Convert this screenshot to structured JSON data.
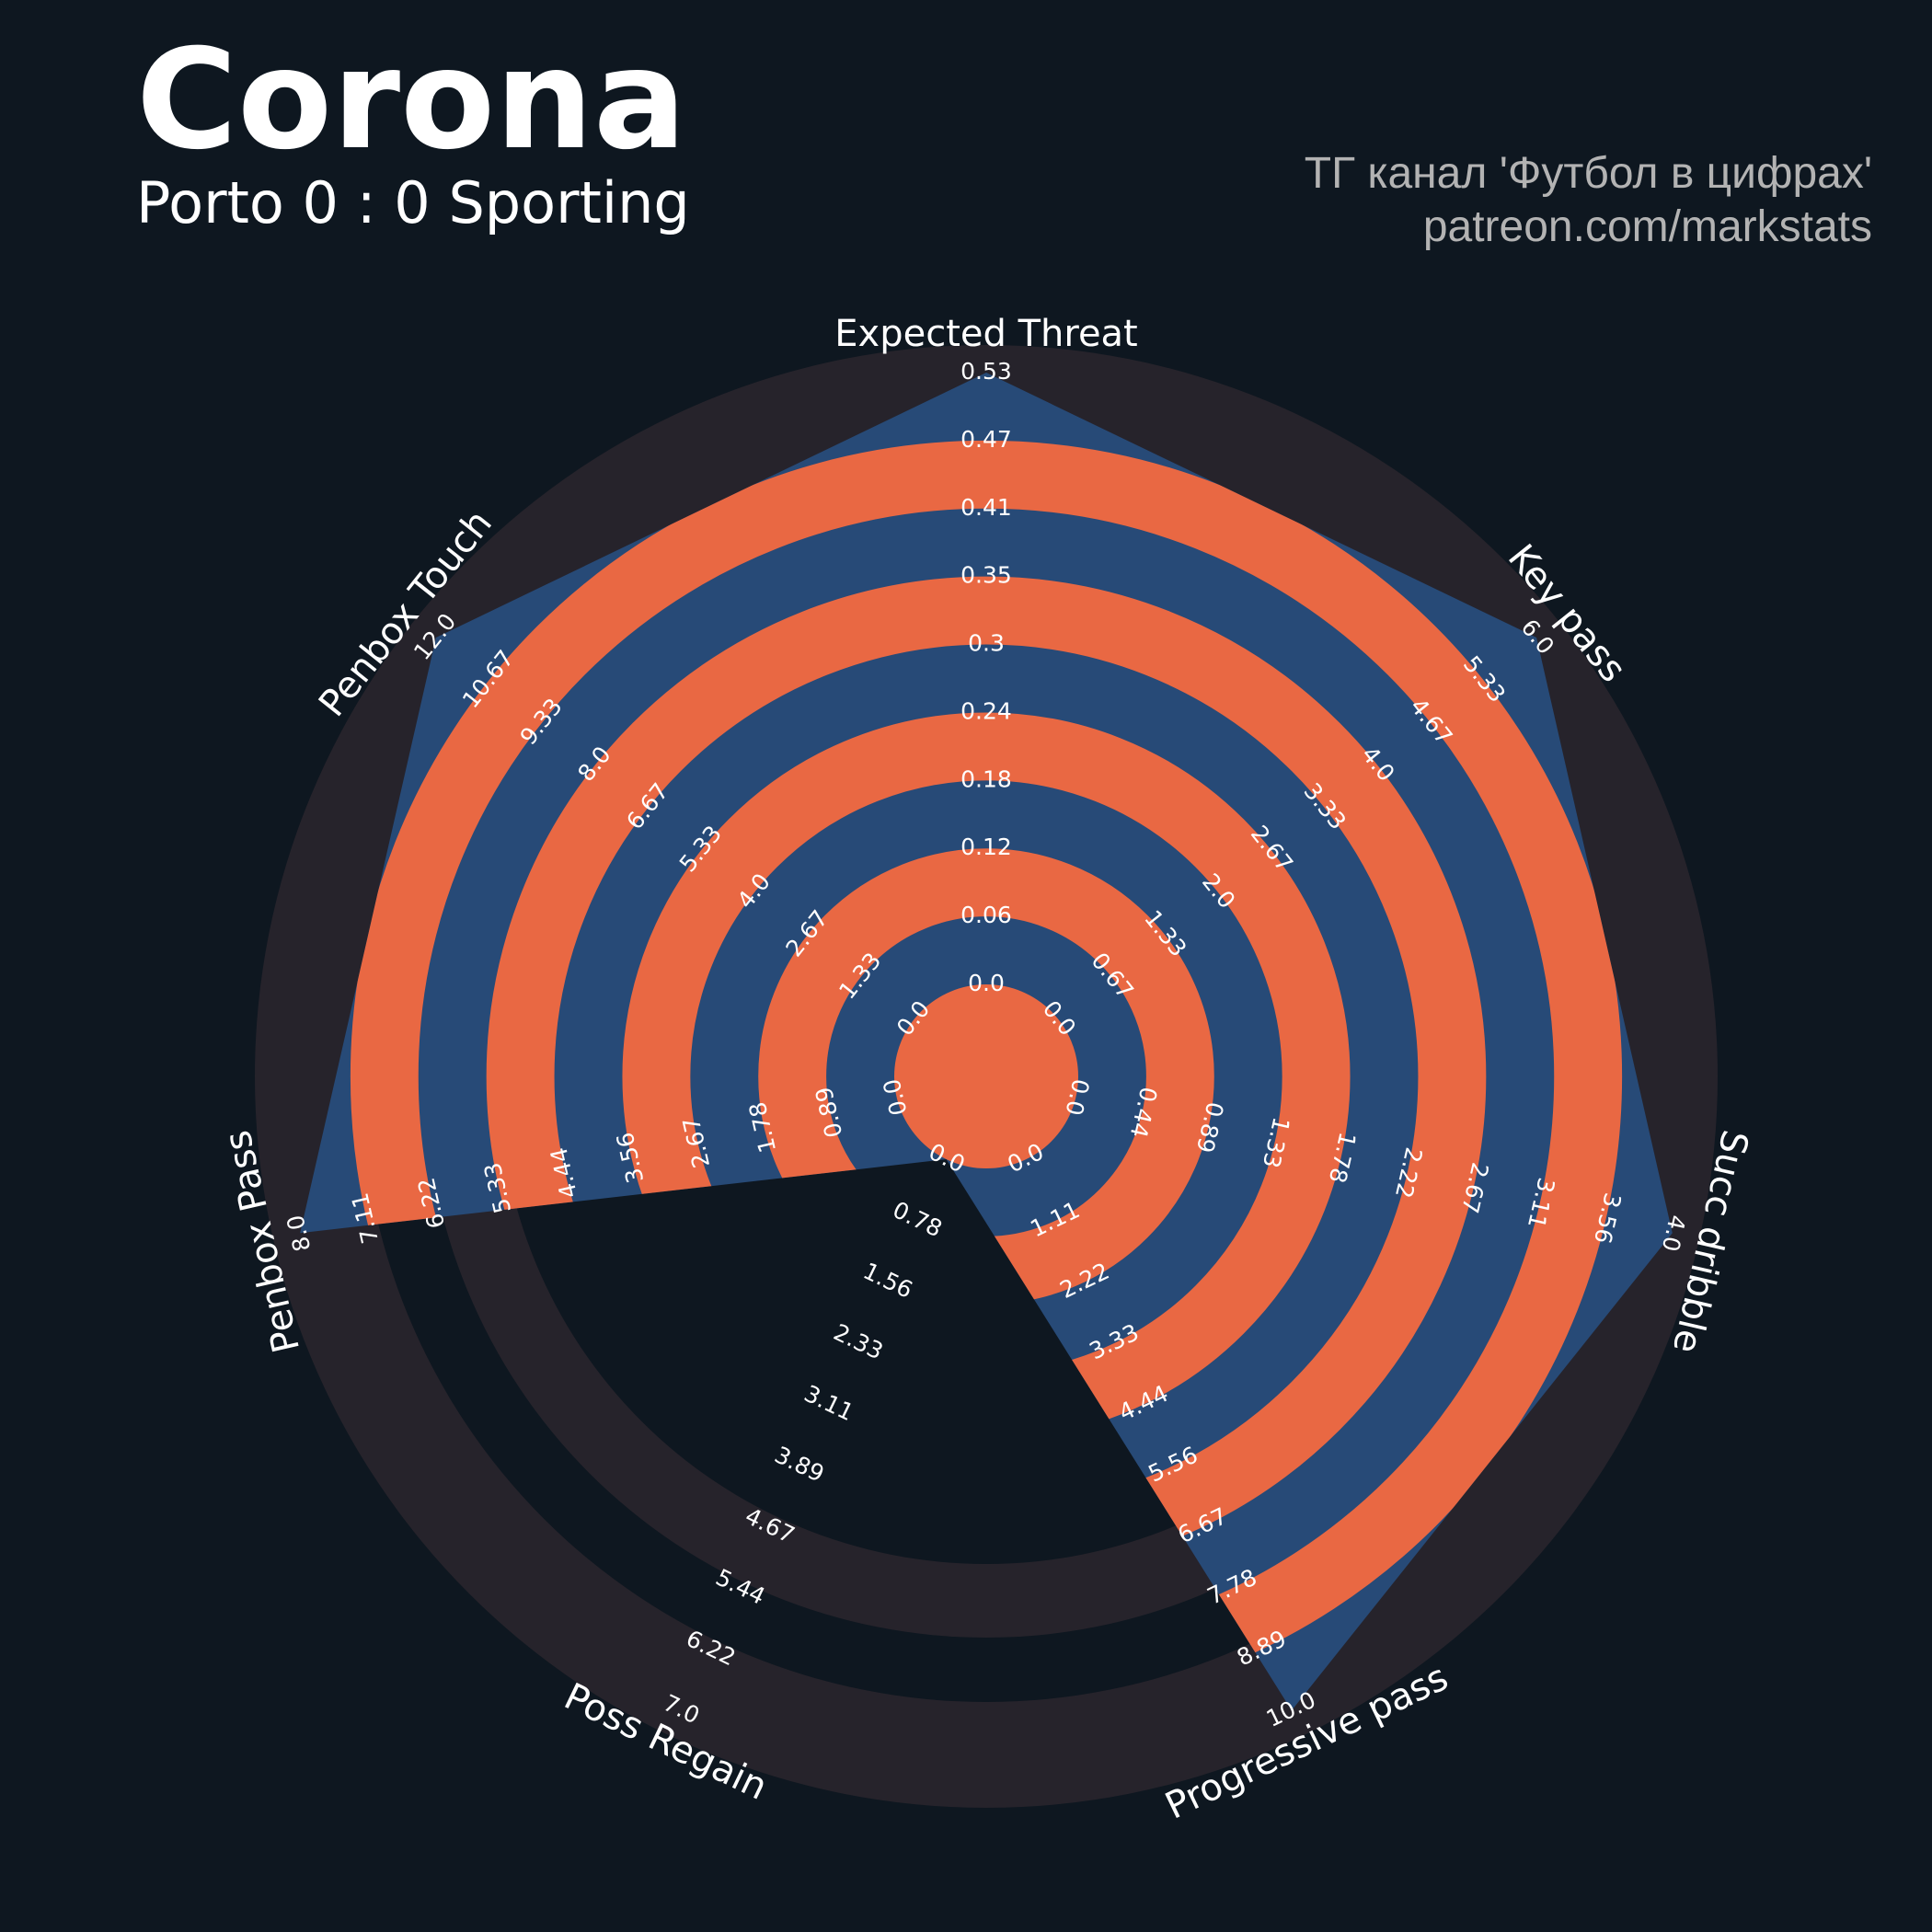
{
  "header": {
    "title": "Corona",
    "subtitle": "Porto 0 : 0 Sporting",
    "credit_line1": "ТГ канал 'Футбол в цифрах'",
    "credit_line2": "patreon.com/markstats"
  },
  "colors": {
    "background": "#0e1720",
    "outer_band": "#26232b",
    "polygon": "#274a77",
    "rings": "#e96843",
    "text": "#ffffff",
    "credit": "#b3b3b3"
  },
  "chart_data": {
    "type": "radar",
    "axes": [
      {
        "name": "Expected Threat",
        "ticks": [
          "0.0",
          "0.06",
          "0.12",
          "0.18",
          "0.24",
          "0.3",
          "0.35",
          "0.41",
          "0.47",
          "0.53"
        ],
        "value": 0.53
      },
      {
        "name": "Key pass",
        "ticks": [
          "0.0",
          "0.67",
          "1.33",
          "2.0",
          "2.67",
          "3.33",
          "4.0",
          "4.67",
          "5.33",
          "6.0"
        ],
        "value": 6.0
      },
      {
        "name": "Succ dribble",
        "ticks": [
          "0.0",
          "0.44",
          "0.89",
          "1.33",
          "1.78",
          "2.22",
          "2.67",
          "3.11",
          "3.56",
          "4.0"
        ],
        "value": 4.0
      },
      {
        "name": "Progressive pass",
        "ticks": [
          "0.0",
          "1.11",
          "2.22",
          "3.33",
          "4.44",
          "5.56",
          "6.67",
          "7.78",
          "8.89",
          "10.0"
        ],
        "value": 10.0
      },
      {
        "name": "Poss Regain",
        "ticks": [
          "0.0",
          "0.78",
          "1.56",
          "2.33",
          "3.11",
          "3.89",
          "4.67",
          "5.44",
          "6.22",
          "7.0"
        ],
        "value": 0.0
      },
      {
        "name": "Penbox Pass",
        "ticks": [
          "0.0",
          "0.89",
          "1.78",
          "2.67",
          "3.56",
          "4.44",
          "5.33",
          "6.22",
          "7.11",
          "8.0"
        ],
        "value": 8.0
      },
      {
        "name": "Penbox Touch",
        "ticks": [
          "0.0",
          "1.33",
          "2.67",
          "4.0",
          "5.33",
          "6.67",
          "8.0",
          "9.33",
          "10.67",
          "12.0"
        ],
        "value": 12.0
      }
    ]
  }
}
